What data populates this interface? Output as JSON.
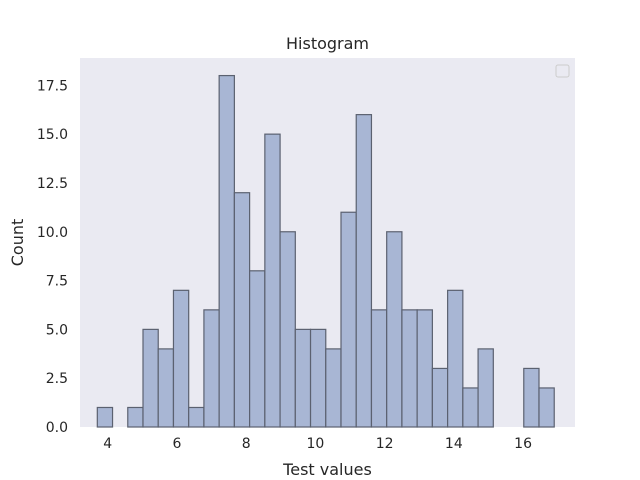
{
  "chart_data": {
    "type": "bar",
    "title": "Histogram",
    "xlabel": "Test values",
    "ylabel": "Count",
    "xlim": [
      3.2,
      17.5
    ],
    "ylim": [
      0,
      18.9
    ],
    "xticks": [
      4,
      6,
      8,
      10,
      12,
      14,
      16
    ],
    "xtick_labels": [
      "4",
      "6",
      "8",
      "10",
      "12",
      "14",
      "16"
    ],
    "yticks": [
      0,
      2.5,
      5,
      7.5,
      10,
      12.5,
      15,
      17.5
    ],
    "ytick_labels": [
      "0.0",
      "2.5",
      "5.0",
      "7.5",
      "10.0",
      "12.5",
      "15.0",
      "17.5"
    ],
    "grid": false,
    "legend": {
      "placement": "top-right",
      "entries": []
    },
    "bins": [
      {
        "x0": 3.7,
        "x1": 4.14,
        "count": 1
      },
      {
        "x0": 4.14,
        "x1": 4.58,
        "count": 0
      },
      {
        "x0": 4.58,
        "x1": 5.02,
        "count": 1
      },
      {
        "x0": 5.02,
        "x1": 5.46,
        "count": 5
      },
      {
        "x0": 5.46,
        "x1": 5.9,
        "count": 4
      },
      {
        "x0": 5.9,
        "x1": 6.34,
        "count": 7
      },
      {
        "x0": 6.34,
        "x1": 6.78,
        "count": 1
      },
      {
        "x0": 6.78,
        "x1": 7.22,
        "count": 6
      },
      {
        "x0": 7.22,
        "x1": 7.66,
        "count": 18
      },
      {
        "x0": 7.66,
        "x1": 8.1,
        "count": 12
      },
      {
        "x0": 8.1,
        "x1": 8.54,
        "count": 8
      },
      {
        "x0": 8.54,
        "x1": 8.98,
        "count": 15
      },
      {
        "x0": 8.98,
        "x1": 9.42,
        "count": 10
      },
      {
        "x0": 9.42,
        "x1": 9.86,
        "count": 5
      },
      {
        "x0": 9.86,
        "x1": 10.3,
        "count": 5
      },
      {
        "x0": 10.3,
        "x1": 10.74,
        "count": 4
      },
      {
        "x0": 10.74,
        "x1": 11.18,
        "count": 11
      },
      {
        "x0": 11.18,
        "x1": 11.62,
        "count": 16
      },
      {
        "x0": 11.62,
        "x1": 12.06,
        "count": 6
      },
      {
        "x0": 12.06,
        "x1": 12.5,
        "count": 10
      },
      {
        "x0": 12.5,
        "x1": 12.94,
        "count": 6
      },
      {
        "x0": 12.94,
        "x1": 13.38,
        "count": 6
      },
      {
        "x0": 13.38,
        "x1": 13.82,
        "count": 3
      },
      {
        "x0": 13.82,
        "x1": 14.26,
        "count": 7
      },
      {
        "x0": 14.26,
        "x1": 14.7,
        "count": 2
      },
      {
        "x0": 14.7,
        "x1": 15.14,
        "count": 4
      },
      {
        "x0": 15.14,
        "x1": 15.58,
        "count": 0
      },
      {
        "x0": 15.58,
        "x1": 16.02,
        "count": 0
      },
      {
        "x0": 16.02,
        "x1": 16.46,
        "count": 3
      },
      {
        "x0": 16.46,
        "x1": 16.9,
        "count": 2
      }
    ],
    "colors": {
      "plot_background": "#eaeaf2",
      "bar_fill": "#a8b6d4",
      "bar_edge": "#5b6170"
    }
  }
}
